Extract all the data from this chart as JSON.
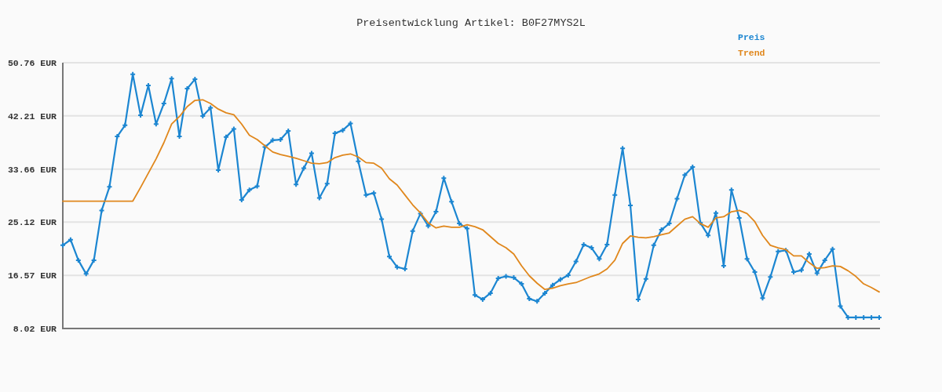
{
  "chart_data": {
    "type": "line",
    "title": "Preisentwicklung Artikel: B0F27MYS2L",
    "categories": [
      null,
      null,
      null,
      null,
      null,
      null,
      null,
      null,
      null,
      null,
      null,
      null,
      null,
      null,
      null,
      null,
      null,
      null,
      null,
      null,
      null,
      null,
      null,
      null,
      null,
      null,
      null,
      null,
      null,
      null,
      null,
      null,
      null,
      null,
      null,
      null,
      null,
      null,
      null,
      null,
      null,
      null,
      null,
      null,
      null,
      null,
      null,
      null,
      null,
      null,
      null,
      null,
      null,
      null,
      null,
      null,
      null,
      null,
      null,
      null,
      null,
      null,
      null,
      null,
      null,
      null,
      null,
      null,
      null,
      null,
      null,
      null,
      null,
      null,
      null,
      null,
      null,
      null,
      null,
      null,
      null,
      null,
      null,
      null,
      null,
      null,
      null,
      null,
      null,
      null,
      null,
      null,
      null,
      null,
      null,
      null,
      null,
      null,
      null,
      null,
      null,
      null,
      null,
      null,
      null,
      null
    ],
    "series": [
      {
        "name": "Preis",
        "color": "#1c86d1",
        "marker": "cross",
        "values": [
          21.4,
          22.3,
          19.0,
          16.8,
          19.0,
          27.0,
          30.8,
          38.9,
          40.7,
          48.9,
          42.3,
          47.1,
          40.9,
          44.2,
          48.2,
          38.9,
          46.6,
          48.1,
          42.2,
          43.5,
          33.5,
          38.8,
          40.1,
          28.7,
          30.3,
          30.9,
          37.2,
          38.3,
          38.4,
          39.8,
          31.2,
          33.8,
          36.2,
          29.0,
          31.3,
          39.4,
          39.9,
          41.0,
          34.9,
          29.5,
          29.8,
          25.6,
          19.6,
          17.9,
          17.6,
          23.7,
          26.5,
          24.5,
          26.8,
          32.2,
          28.4,
          24.9,
          24.1,
          13.4,
          12.7,
          13.7,
          16.1,
          16.4,
          16.2,
          15.2,
          12.8,
          12.4,
          13.7,
          15.0,
          15.9,
          16.6,
          18.8,
          21.5,
          21.0,
          19.2,
          21.5,
          29.5,
          37.0,
          27.8,
          12.7,
          16.0,
          21.4,
          23.9,
          24.9,
          28.9,
          32.7,
          34.0,
          25.0,
          23.0,
          26.6,
          18.1,
          30.3,
          25.8,
          19.2,
          17.1,
          12.9,
          16.3,
          20.4,
          20.6,
          17.1,
          17.4,
          20.0,
          16.9,
          19.0,
          20.8,
          11.6,
          9.8,
          9.8,
          9.8,
          9.8,
          9.8
        ]
      },
      {
        "name": "Trend",
        "color": "#e0871c",
        "values": [
          28.5,
          28.5,
          28.5,
          28.5,
          28.5,
          28.5,
          28.5,
          28.5,
          28.5,
          28.5,
          30.7,
          33.0,
          35.3,
          37.9,
          40.9,
          42.1,
          43.7,
          44.7,
          44.8,
          44.2,
          43.3,
          42.7,
          42.4,
          40.9,
          39.1,
          38.4,
          37.4,
          36.4,
          36.0,
          35.7,
          35.4,
          35.0,
          34.6,
          34.5,
          34.7,
          35.5,
          35.9,
          36.1,
          35.6,
          34.7,
          34.6,
          33.8,
          32.1,
          31.1,
          29.5,
          27.9,
          26.6,
          25.0,
          24.2,
          24.5,
          24.3,
          24.3,
          24.7,
          24.4,
          23.9,
          22.8,
          21.7,
          21.0,
          20.0,
          18.1,
          16.5,
          15.3,
          14.3,
          14.5,
          14.9,
          15.2,
          15.4,
          15.9,
          16.4,
          16.8,
          17.6,
          19.0,
          21.7,
          22.9,
          22.7,
          22.6,
          22.8,
          23.1,
          23.4,
          24.5,
          25.6,
          26.0,
          24.9,
          24.3,
          25.8,
          26.0,
          26.8,
          27.0,
          26.5,
          25.2,
          23.0,
          21.4,
          21.0,
          20.7,
          19.7,
          19.7,
          18.6,
          17.7,
          17.8,
          18.1,
          18.0,
          17.3,
          16.4,
          15.2,
          14.6,
          13.9
        ]
      }
    ],
    "ylim": [
      8.02,
      50.76
    ],
    "yticks": [
      {
        "value": 8.02,
        "label": "8.02 EUR"
      },
      {
        "value": 16.57,
        "label": "16.57 EUR"
      },
      {
        "value": 25.12,
        "label": "25.12 EUR"
      },
      {
        "value": 33.66,
        "label": "33.66 EUR"
      },
      {
        "value": 42.21,
        "label": "42.21 EUR"
      },
      {
        "value": 50.76,
        "label": "50.76 EUR"
      }
    ],
    "grid": "y",
    "legend": "top right"
  }
}
